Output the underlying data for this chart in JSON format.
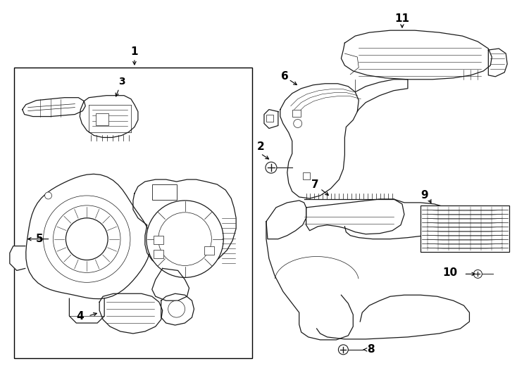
{
  "bg": "#ffffff",
  "lc": "#1a1a1a",
  "fig_w": 7.34,
  "fig_h": 5.4,
  "dpi": 100,
  "lw": 0.9,
  "fs": 10
}
